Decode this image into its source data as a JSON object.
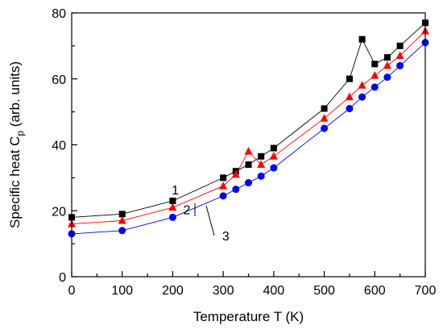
{
  "chart_data": {
    "type": "line",
    "xlabel": "Temperature T (K)",
    "ylabel_main": "Specific heat C",
    "ylabel_sub": "p",
    "ylabel_units": " (arb. units)",
    "xlim": [
      0,
      700
    ],
    "ylim": [
      0,
      80
    ],
    "xticks": [
      0,
      100,
      200,
      300,
      400,
      500,
      600,
      700
    ],
    "yticks": [
      0,
      20,
      40,
      60,
      80
    ],
    "grid": false,
    "series": [
      {
        "color": "#000000",
        "marker": "square",
        "x": [
          0,
          100,
          200,
          300,
          325,
          350,
          375,
          400,
          500,
          550,
          575,
          600,
          625,
          650,
          700
        ],
        "y": [
          18,
          19,
          23,
          30,
          32,
          34,
          36.5,
          39,
          51,
          60,
          72,
          64.5,
          66.5,
          70,
          77
        ]
      },
      {
        "color": "#ff0000",
        "marker": "triangle",
        "x": [
          0,
          100,
          200,
          300,
          325,
          350,
          375,
          400,
          500,
          550,
          575,
          600,
          625,
          650,
          700
        ],
        "y": [
          16,
          17,
          21,
          27.5,
          31,
          38,
          34,
          36.5,
          48,
          54.5,
          58,
          61,
          64,
          67,
          74.5
        ]
      },
      {
        "color": "#0000ff",
        "marker": "circle",
        "x": [
          0,
          100,
          200,
          300,
          325,
          350,
          375,
          400,
          500,
          550,
          575,
          600,
          625,
          650,
          700
        ],
        "y": [
          13,
          14,
          18,
          24.5,
          26.5,
          28.5,
          30.5,
          33,
          45,
          51,
          54.5,
          57.5,
          60.5,
          64,
          71
        ]
      }
    ],
    "annotations": [
      {
        "text": "1",
        "x": 205,
        "y": 25
      },
      {
        "text": "2",
        "x": 228,
        "y": 19
      },
      {
        "text": "3",
        "x": 305,
        "y": 11
      }
    ]
  }
}
